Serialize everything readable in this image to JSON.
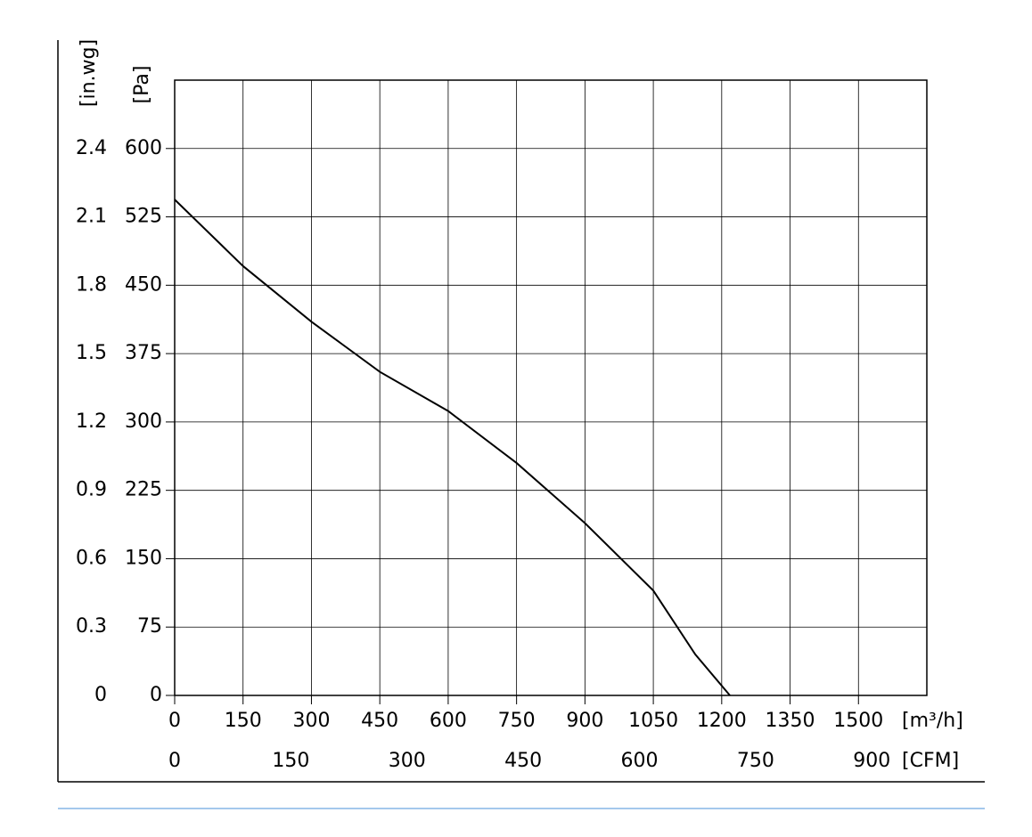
{
  "chart_data": {
    "type": "line",
    "x_label": "[m³/h]",
    "x2_label": "[CFM]",
    "y_label": "[Pa]",
    "y2_label": "[in.wg]",
    "series": [
      {
        "color": "#000000",
        "x": [
          0,
          150,
          300,
          450,
          600,
          750,
          900,
          1050,
          1142,
          1218
        ],
        "values": [
          544,
          471,
          410,
          355,
          312,
          255,
          189,
          115,
          45,
          0
        ]
      }
    ],
    "xlim": [
      0,
      1650
    ],
    "xticks": [
      0,
      150,
      300,
      450,
      600,
      750,
      900,
      1050,
      1200,
      1350,
      1500
    ],
    "x2lim": [
      0,
      971
    ],
    "x2ticks": [
      0,
      150,
      300,
      450,
      600,
      750,
      900
    ],
    "ylim": [
      0,
      675
    ],
    "yticks": [
      0,
      75,
      150,
      225,
      300,
      375,
      450,
      525,
      600
    ],
    "y2lim": [
      0,
      2.7
    ],
    "y2ticks": [
      0,
      0.3,
      0.6,
      0.9,
      1.2,
      1.5,
      1.8,
      2.1,
      2.4
    ],
    "grid": true
  }
}
